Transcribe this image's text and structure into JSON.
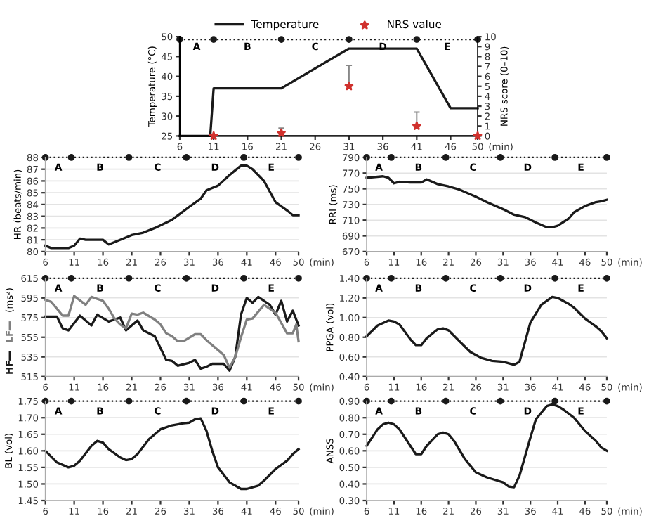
{
  "chart_data": [
    {
      "type": "line",
      "ylabel": "Temperature (°C)",
      "y2label": "NRS score (0–10)",
      "xlabel": "(min)",
      "xlim": [
        6,
        50
      ],
      "xticks": [
        6,
        11,
        16,
        21,
        26,
        31,
        36,
        41,
        46,
        50
      ],
      "ylim": [
        25,
        50
      ],
      "yticks": [
        25,
        30,
        35,
        40,
        45,
        50
      ],
      "y2lim": [
        0,
        10
      ],
      "y2ticks": [
        0,
        1,
        2,
        3,
        4,
        5,
        6,
        7,
        8,
        9,
        10
      ],
      "legend": "top",
      "grid": false,
      "series": [
        {
          "name": "Temperature",
          "color": "#1a1a1a",
          "x": [
            6,
            10.5,
            11,
            21,
            31,
            41,
            46,
            50
          ],
          "values": [
            25,
            25,
            37,
            37,
            47,
            47,
            32,
            32
          ]
        },
        {
          "name": "NRS value",
          "type": "scatter",
          "axis": "y2",
          "marker": "star",
          "color": "#d0312d",
          "x": [
            11,
            21,
            31,
            41,
            50
          ],
          "values": [
            0,
            0.3,
            5,
            1,
            0
          ],
          "errors": [
            null,
            [
              0.3,
              0.8
            ],
            [
              5,
              7.1
            ],
            [
              1,
              2.4
            ],
            null
          ]
        },
        {
          "color": "#1a1a1a",
          "line_style": "dotted",
          "marker": "circle",
          "x": [
            6,
            11,
            21,
            31,
            41,
            50
          ],
          "values": [
            49.3,
            49.3,
            49.3,
            49.3,
            49.3,
            49.3
          ]
        }
      ],
      "annotations": [
        "A",
        "B",
        "C",
        "D",
        "E"
      ]
    },
    {
      "type": "line",
      "ylabel": "HR (beats/min)",
      "xlabel": "(min)",
      "xlim": [
        6,
        50
      ],
      "xticks": [
        6,
        11,
        16,
        21,
        26,
        31,
        36,
        41,
        46,
        50
      ],
      "ylim": [
        80,
        88
      ],
      "yticks": [
        80,
        81,
        82,
        83,
        84,
        85,
        86,
        87,
        88
      ],
      "grid": "y",
      "series": [
        {
          "color": "#1a1a1a",
          "x": [
            6,
            7,
            10,
            11,
            12,
            13,
            16,
            17,
            18,
            21,
            23,
            25,
            28,
            31,
            33,
            34,
            36,
            38,
            40,
            41,
            42,
            44,
            46,
            48,
            49,
            50
          ],
          "values": [
            80.5,
            80.3,
            80.3,
            80.5,
            81.1,
            81.0,
            81.0,
            80.6,
            80.8,
            81.4,
            81.6,
            82.0,
            82.7,
            83.8,
            84.5,
            85.2,
            85.6,
            86.5,
            87.3,
            87.3,
            87.0,
            86.0,
            84.2,
            83.5,
            83.1,
            83.1
          ]
        },
        {
          "color": "#1a1a1a",
          "line_style": "dotted",
          "marker": "circle",
          "x": [
            6,
            10.5,
            20.5,
            30.5,
            40.5,
            50
          ],
          "values": [
            88,
            88,
            88,
            88,
            88,
            88
          ]
        }
      ],
      "annotations": [
        "A",
        "B",
        "C",
        "D",
        "E"
      ]
    },
    {
      "type": "line",
      "ylabel": "RRI (ms)",
      "xlabel": "(min)",
      "xlim": [
        6,
        50
      ],
      "xticks": [
        6,
        11,
        16,
        21,
        26,
        31,
        36,
        41,
        46,
        50
      ],
      "ylim": [
        670,
        790
      ],
      "yticks": [
        670,
        690,
        710,
        730,
        750,
        770,
        790
      ],
      "grid": "y",
      "series": [
        {
          "color": "#1a1a1a",
          "x": [
            6,
            9,
            10,
            11,
            12,
            14,
            16,
            17,
            19,
            21,
            23,
            26,
            28,
            31,
            33,
            35,
            37,
            39,
            40,
            41,
            43,
            44,
            46,
            48,
            49,
            50
          ],
          "values": [
            764,
            766,
            764,
            757,
            759,
            758,
            758,
            762,
            756,
            753,
            749,
            740,
            733,
            724,
            717,
            714,
            707,
            701,
            701,
            703,
            712,
            720,
            728,
            733,
            734,
            736
          ]
        },
        {
          "color": "#1a1a1a",
          "line_style": "dotted",
          "marker": "circle",
          "x": [
            6,
            10.5,
            20.5,
            30.5,
            40.5,
            50
          ],
          "values": [
            790,
            790,
            790,
            790,
            790,
            790
          ]
        }
      ],
      "annotations": [
        "A",
        "B",
        "C",
        "D",
        "E"
      ]
    },
    {
      "type": "line",
      "ylabel": "(ms²)",
      "xlabel": "(min)",
      "xlim": [
        6,
        50
      ],
      "xticks": [
        6,
        11,
        16,
        21,
        26,
        31,
        36,
        41,
        46,
        50
      ],
      "ylim": [
        515,
        615
      ],
      "yticks": [
        515,
        535,
        555,
        575,
        595,
        615
      ],
      "grid": "y",
      "legend": "left",
      "series": [
        {
          "name": "HF",
          "color": "#1a1a1a",
          "x": [
            6,
            8,
            9,
            10,
            12,
            14,
            15,
            17,
            19,
            20,
            22,
            23,
            25,
            27,
            28,
            29,
            31,
            32,
            33,
            34,
            35,
            37,
            38,
            39,
            40,
            41,
            42,
            43,
            45,
            46,
            47,
            48,
            49,
            50
          ],
          "values": [
            576,
            576,
            564,
            562,
            577,
            567,
            578,
            571,
            575,
            562,
            572,
            562,
            556,
            532,
            531,
            526,
            529,
            532,
            523,
            525,
            528,
            528,
            521,
            535,
            578,
            595,
            590,
            596,
            588,
            578,
            592,
            571,
            582,
            567
          ]
        },
        {
          "name": "LF",
          "color": "#808080",
          "x": [
            6,
            7,
            9,
            10,
            11,
            13,
            14,
            16,
            17,
            18,
            19,
            20,
            21,
            22,
            23,
            25,
            26,
            27,
            28,
            29,
            30,
            32,
            33,
            34,
            36,
            37,
            38,
            39,
            40,
            41,
            42,
            44,
            46,
            48,
            49,
            49.6,
            50
          ],
          "values": [
            593,
            591,
            577,
            577,
            597,
            588,
            596,
            592,
            584,
            574,
            568,
            564,
            579,
            578,
            580,
            573,
            568,
            559,
            556,
            551,
            551,
            558,
            558,
            552,
            542,
            537,
            524,
            535,
            555,
            573,
            574,
            588,
            580,
            559,
            559,
            568,
            551
          ]
        },
        {
          "color": "#1a1a1a",
          "line_style": "dotted",
          "marker": "circle",
          "x": [
            6,
            10.5,
            20.5,
            30.5,
            40.5,
            50
          ],
          "values": [
            615,
            615,
            615,
            615,
            615,
            615
          ]
        }
      ],
      "annotations": [
        "A",
        "B",
        "C",
        "D",
        "E"
      ]
    },
    {
      "type": "line",
      "ylabel": "PPGA (vol)",
      "xlabel": "(min)",
      "xlim": [
        6,
        50
      ],
      "xticks": [
        6,
        11,
        16,
        21,
        26,
        31,
        36,
        41,
        46,
        50
      ],
      "ylim": [
        0.4,
        1.4
      ],
      "yticks": [
        {
          "value": 0.4,
          "label": "0.40"
        },
        {
          "value": 0.6,
          "label": "0.60"
        },
        {
          "value": 0.8,
          "label": "0.80"
        },
        {
          "value": 1.0,
          "label": "1.00"
        },
        {
          "value": 1.2,
          "label": "1.20"
        },
        {
          "value": 1.4,
          "label": "1.40"
        }
      ],
      "grid": "y",
      "series": [
        {
          "color": "#1a1a1a",
          "x": [
            6,
            8,
            10,
            11,
            12,
            14,
            15,
            16,
            17,
            19,
            20,
            21,
            23,
            25,
            27,
            29,
            31,
            33,
            34,
            35,
            36,
            38,
            40,
            41,
            43,
            44,
            46,
            48,
            49,
            50
          ],
          "values": [
            0.81,
            0.92,
            0.97,
            0.96,
            0.93,
            0.78,
            0.72,
            0.72,
            0.79,
            0.88,
            0.89,
            0.87,
            0.76,
            0.65,
            0.59,
            0.56,
            0.55,
            0.52,
            0.55,
            0.75,
            0.95,
            1.13,
            1.21,
            1.2,
            1.14,
            1.1,
            0.99,
            0.91,
            0.86,
            0.79
          ]
        },
        {
          "color": "#1a1a1a",
          "line_style": "dotted",
          "marker": "circle",
          "x": [
            6,
            10.5,
            20.5,
            30.5,
            40.5,
            50
          ],
          "values": [
            1.4,
            1.4,
            1.4,
            1.4,
            1.4,
            1.4
          ]
        }
      ],
      "annotations": [
        "A",
        "B",
        "C",
        "D",
        "E"
      ]
    },
    {
      "type": "line",
      "ylabel": "BL (vol)",
      "xlabel": "(min)",
      "xlim": [
        6,
        50
      ],
      "xticks": [
        6,
        11,
        16,
        21,
        26,
        31,
        36,
        41,
        46,
        50
      ],
      "ylim": [
        1.45,
        1.75
      ],
      "yticks": [
        {
          "value": 1.45,
          "label": "1.45"
        },
        {
          "value": 1.5,
          "label": "1.50"
        },
        {
          "value": 1.55,
          "label": "1.55"
        },
        {
          "value": 1.6,
          "label": "1.60"
        },
        {
          "value": 1.65,
          "label": "1.65"
        },
        {
          "value": 1.7,
          "label": "1.70"
        },
        {
          "value": 1.75,
          "label": "1.75"
        }
      ],
      "grid": "y",
      "series": [
        {
          "color": "#1a1a1a",
          "x": [
            6,
            8,
            10,
            11,
            12,
            14,
            15,
            16,
            17,
            19,
            20,
            21,
            22,
            24,
            26,
            28,
            30,
            31,
            32,
            33,
            34,
            35,
            36,
            38,
            40,
            41,
            43,
            44,
            46,
            48,
            49,
            50
          ],
          "values": [
            1.6,
            1.565,
            1.55,
            1.555,
            1.57,
            1.615,
            1.63,
            1.625,
            1.605,
            1.58,
            1.572,
            1.575,
            1.59,
            1.635,
            1.665,
            1.677,
            1.683,
            1.685,
            1.695,
            1.698,
            1.66,
            1.6,
            1.55,
            1.505,
            1.485,
            1.485,
            1.495,
            1.51,
            1.545,
            1.57,
            1.59,
            1.605
          ]
        },
        {
          "color": "#1a1a1a",
          "line_style": "dotted",
          "marker": "circle",
          "x": [
            6,
            10.5,
            20.5,
            30.5,
            40.5,
            50
          ],
          "values": [
            1.75,
            1.75,
            1.75,
            1.75,
            1.75,
            1.75
          ]
        }
      ],
      "annotations": [
        "A",
        "B",
        "C",
        "D",
        "E"
      ]
    },
    {
      "type": "line",
      "ylabel": "ANSS",
      "xlabel": "(min)",
      "xlim": [
        6,
        50
      ],
      "xticks": [
        6,
        11,
        16,
        21,
        26,
        31,
        36,
        41,
        46,
        50
      ],
      "ylim": [
        0.3,
        0.9
      ],
      "yticks": [
        {
          "value": 0.3,
          "label": "0.30"
        },
        {
          "value": 0.4,
          "label": "0.40"
        },
        {
          "value": 0.5,
          "label": "0.50"
        },
        {
          "value": 0.6,
          "label": "0.60"
        },
        {
          "value": 0.7,
          "label": "0.70"
        },
        {
          "value": 0.8,
          "label": "0.80"
        },
        {
          "value": 0.9,
          "label": "0.90"
        }
      ],
      "grid": "y",
      "series": [
        {
          "color": "#1a1a1a",
          "x": [
            6,
            8,
            9,
            10,
            11,
            12,
            14,
            15,
            16,
            17,
            19,
            20,
            21,
            22,
            24,
            26,
            28,
            30,
            31,
            32,
            33,
            34,
            36,
            37,
            39,
            40,
            41,
            42,
            44,
            46,
            48,
            49,
            50
          ],
          "values": [
            0.63,
            0.73,
            0.76,
            0.77,
            0.76,
            0.73,
            0.63,
            0.58,
            0.58,
            0.63,
            0.7,
            0.71,
            0.7,
            0.66,
            0.55,
            0.47,
            0.44,
            0.42,
            0.41,
            0.385,
            0.38,
            0.45,
            0.68,
            0.79,
            0.87,
            0.88,
            0.87,
            0.85,
            0.8,
            0.72,
            0.66,
            0.62,
            0.6
          ]
        },
        {
          "color": "#1a1a1a",
          "line_style": "dotted",
          "marker": "circle",
          "x": [
            6,
            10.5,
            20.5,
            30.5,
            40.5,
            50
          ],
          "values": [
            0.9,
            0.9,
            0.9,
            0.9,
            0.9,
            0.9
          ]
        }
      ],
      "annotations": [
        "A",
        "B",
        "C",
        "D",
        "E"
      ]
    }
  ]
}
